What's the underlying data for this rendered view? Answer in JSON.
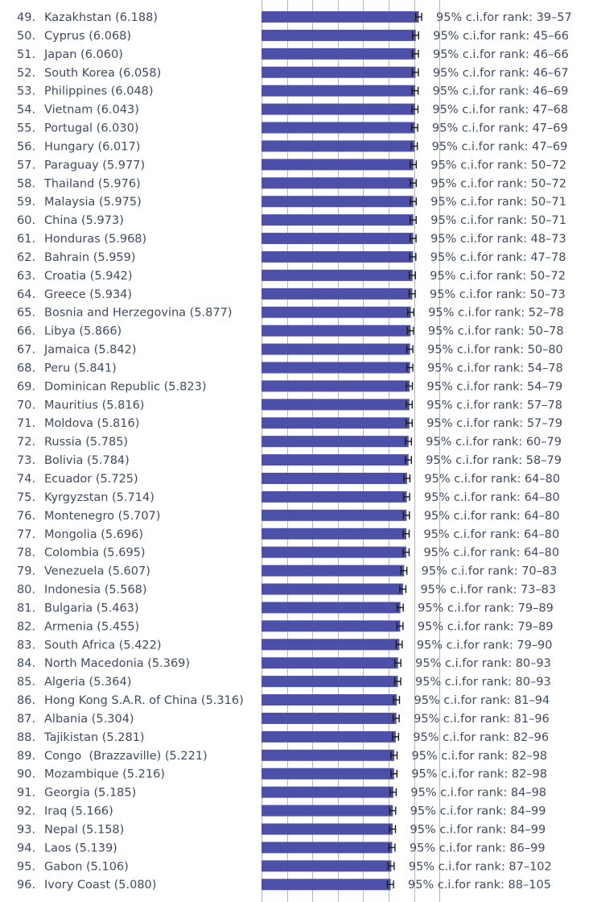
{
  "chart_data": {
    "type": "bar",
    "orientation": "horizontal",
    "title": "",
    "xlabel": "",
    "ylabel": "",
    "xlim": [
      0,
      7.5
    ],
    "grid": true,
    "error_bars": true,
    "colors": {
      "bar": "#4d50a8",
      "grid": "#b4b4bc",
      "text": "#3f4a63",
      "errorbar": "#1a1a1a"
    },
    "rows": [
      {
        "rank": "49.",
        "label": "Kazakhstan (6.188)",
        "value": 6.188,
        "ci": "95% c.i.for rank: 39–57"
      },
      {
        "rank": "50.",
        "label": "Cyprus (6.068)",
        "value": 6.068,
        "ci": "95% c.i.for rank: 45–66"
      },
      {
        "rank": "51.",
        "label": "Japan (6.060)",
        "value": 6.06,
        "ci": "95% c.i.for rank: 46–66"
      },
      {
        "rank": "52.",
        "label": "South Korea (6.058)",
        "value": 6.058,
        "ci": "95% c.i.for rank: 46–67"
      },
      {
        "rank": "53.",
        "label": "Philippines (6.048)",
        "value": 6.048,
        "ci": "95% c.i.for rank: 46–69"
      },
      {
        "rank": "54.",
        "label": "Vietnam (6.043)",
        "value": 6.043,
        "ci": "95% c.i.for rank: 47–68"
      },
      {
        "rank": "55.",
        "label": "Portugal (6.030)",
        "value": 6.03,
        "ci": "95% c.i.for rank: 47–69"
      },
      {
        "rank": "56.",
        "label": "Hungary (6.017)",
        "value": 6.017,
        "ci": "95% c.i.for rank: 47–69"
      },
      {
        "rank": "57.",
        "label": "Paraguay (5.977)",
        "value": 5.977,
        "ci": "95% c.i.for rank: 50–72"
      },
      {
        "rank": "58.",
        "label": "Thailand (5.976)",
        "value": 5.976,
        "ci": "95% c.i.for rank: 50–72"
      },
      {
        "rank": "59.",
        "label": "Malaysia (5.975)",
        "value": 5.975,
        "ci": "95% c.i.for rank: 50–71"
      },
      {
        "rank": "60.",
        "label": "China (5.973)",
        "value": 5.973,
        "ci": "95% c.i.for rank: 50–71"
      },
      {
        "rank": "61.",
        "label": "Honduras (5.968)",
        "value": 5.968,
        "ci": "95% c.i.for rank: 48–73"
      },
      {
        "rank": "62.",
        "label": "Bahrain (5.959)",
        "value": 5.959,
        "ci": "95% c.i.for rank: 47–78"
      },
      {
        "rank": "63.",
        "label": "Croatia (5.942)",
        "value": 5.942,
        "ci": "95% c.i.for rank: 50–72"
      },
      {
        "rank": "64.",
        "label": "Greece (5.934)",
        "value": 5.934,
        "ci": "95% c.i.for rank: 50–73"
      },
      {
        "rank": "65.",
        "label": "Bosnia and Herzegovina (5.877)",
        "value": 5.877,
        "ci": "95% c.i.for rank: 52–78"
      },
      {
        "rank": "66.",
        "label": "Libya (5.866)",
        "value": 5.866,
        "ci": "95% c.i.for rank: 50–78"
      },
      {
        "rank": "67.",
        "label": "Jamaica (5.842)",
        "value": 5.842,
        "ci": "95% c.i.for rank: 50–80"
      },
      {
        "rank": "68.",
        "label": "Peru (5.841)",
        "value": 5.841,
        "ci": "95% c.i.for rank: 54–78"
      },
      {
        "rank": "69.",
        "label": "Dominican Republic (5.823)",
        "value": 5.823,
        "ci": "95% c.i.for rank: 54–79"
      },
      {
        "rank": "70.",
        "label": "Mauritius (5.816)",
        "value": 5.816,
        "ci": "95% c.i.for rank: 57–78"
      },
      {
        "rank": "71.",
        "label": "Moldova (5.816)",
        "value": 5.816,
        "ci": "95% c.i.for rank: 57–79"
      },
      {
        "rank": "72.",
        "label": "Russia (5.785)",
        "value": 5.785,
        "ci": "95% c.i.for rank: 60–79"
      },
      {
        "rank": "73.",
        "label": "Bolivia (5.784)",
        "value": 5.784,
        "ci": "95% c.i.for rank: 58–79"
      },
      {
        "rank": "74.",
        "label": "Ecuador (5.725)",
        "value": 5.725,
        "ci": "95% c.i.for rank: 64–80"
      },
      {
        "rank": "75.",
        "label": "Kyrgyzstan (5.714)",
        "value": 5.714,
        "ci": "95% c.i.for rank: 64–80"
      },
      {
        "rank": "76.",
        "label": "Montenegro (5.707)",
        "value": 5.707,
        "ci": "95% c.i.for rank: 64–80"
      },
      {
        "rank": "77.",
        "label": "Mongolia (5.696)",
        "value": 5.696,
        "ci": "95% c.i.for rank: 64–80"
      },
      {
        "rank": "78.",
        "label": "Colombia (5.695)",
        "value": 5.695,
        "ci": "95% c.i.for rank: 64–80"
      },
      {
        "rank": "79.",
        "label": "Venezuela (5.607)",
        "value": 5.607,
        "ci": "95% c.i.for rank: 70–83"
      },
      {
        "rank": "80.",
        "label": "Indonesia (5.568)",
        "value": 5.568,
        "ci": "95% c.i.for rank: 73–83"
      },
      {
        "rank": "81.",
        "label": "Bulgaria (5.463)",
        "value": 5.463,
        "ci": "95% c.i.for rank: 79–89"
      },
      {
        "rank": "82.",
        "label": "Armenia (5.455)",
        "value": 5.455,
        "ci": "95% c.i.for rank: 79–89"
      },
      {
        "rank": "83.",
        "label": "South Africa (5.422)",
        "value": 5.422,
        "ci": "95% c.i.for rank: 79–90"
      },
      {
        "rank": "84.",
        "label": "North Macedonia (5.369)",
        "value": 5.369,
        "ci": "95% c.i.for rank: 80–93"
      },
      {
        "rank": "85.",
        "label": "Algeria (5.364)",
        "value": 5.364,
        "ci": "95% c.i.for rank: 80–93"
      },
      {
        "rank": "86.",
        "label": "Hong Kong S.A.R. of China (5.316)",
        "value": 5.316,
        "ci": "95% c.i.for rank: 81–94"
      },
      {
        "rank": "87.",
        "label": "Albania (5.304)",
        "value": 5.304,
        "ci": "95% c.i.for rank: 81–96"
      },
      {
        "rank": "88.",
        "label": "Tajikistan (5.281)",
        "value": 5.281,
        "ci": "95% c.i.for rank: 82–96"
      },
      {
        "rank": "89.",
        "label": "Congo  (Brazzaville) (5.221)",
        "value": 5.221,
        "ci": "95% c.i.for rank: 82–98"
      },
      {
        "rank": "90.",
        "label": "Mozambique (5.216)",
        "value": 5.216,
        "ci": "95% c.i.for rank: 82–98"
      },
      {
        "rank": "91.",
        "label": "Georgia (5.185)",
        "value": 5.185,
        "ci": "95% c.i.for rank: 84–98"
      },
      {
        "rank": "92.",
        "label": "Iraq (5.166)",
        "value": 5.166,
        "ci": "95% c.i.for rank: 84–99"
      },
      {
        "rank": "93.",
        "label": "Nepal (5.158)",
        "value": 5.158,
        "ci": "95% c.i.for rank: 84–99"
      },
      {
        "rank": "94.",
        "label": "Laos (5.139)",
        "value": 5.139,
        "ci": "95% c.i.for rank: 86–99"
      },
      {
        "rank": "95.",
        "label": "Gabon (5.106)",
        "value": 5.106,
        "ci": "95% c.i.for rank: 87–102"
      },
      {
        "rank": "96.",
        "label": "Ivory Coast (5.080)",
        "value": 5.08,
        "ci": "95% c.i.for rank: 88–105"
      }
    ]
  }
}
